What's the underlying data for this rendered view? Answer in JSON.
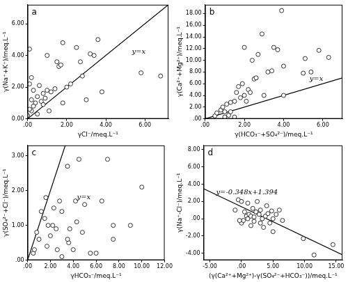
{
  "chart_data": [
    {
      "type": "scatter",
      "title": "a",
      "color": "#000000",
      "marker": "circle",
      "grid": false,
      "x_label": "γCl⁻/meq.L⁻¹",
      "y_label": "γ(Na⁺+K⁺)/meq.L⁻¹",
      "x": [
        0.1,
        0.2,
        0.1,
        0.3,
        0.2,
        0.4,
        0.3,
        0.2,
        0.5,
        0.5,
        0.6,
        0.7,
        0.8,
        0.8,
        0.9,
        1.0,
        1.0,
        1.1,
        1.2,
        1.4,
        1.5,
        1.6,
        1.7,
        1.8,
        1.8,
        2.0,
        2.2,
        2.5,
        2.7,
        2.8,
        3.0,
        3.2,
        3.4,
        3.6,
        3.8,
        5.8,
        6.8,
        0.0,
        0.1
      ],
      "values": [
        4.4,
        2.6,
        2.2,
        1.8,
        1.2,
        1.0,
        0.8,
        0.5,
        0.3,
        1.4,
        2.1,
        1.1,
        0.9,
        1.6,
        1.3,
        4.0,
        1.8,
        0.5,
        1.7,
        1.9,
        3.6,
        3.3,
        3.4,
        4.8,
        1.0,
        2.0,
        2.2,
        4.5,
        3.6,
        2.7,
        1.2,
        4.1,
        4.0,
        5.0,
        1.7,
        2.9,
        2.7,
        0.2,
        0.6
      ],
      "xlim": [
        0,
        7.2
      ],
      "ylim": [
        0,
        7.2
      ],
      "xticks": [
        {
          "value": 0,
          "label": ".00"
        },
        {
          "value": 2,
          "label": "2.00"
        },
        {
          "value": 4,
          "label": "4.00"
        },
        {
          "value": 6,
          "label": "6.00"
        }
      ],
      "yticks": [
        {
          "value": 0,
          "label": "0.00"
        },
        {
          "value": 2,
          "label": "2.00"
        },
        {
          "value": 4,
          "label": "4.00"
        },
        {
          "value": 6,
          "label": "6.00"
        }
      ],
      "annotation": {
        "text": "y=x",
        "slope": 1,
        "intercept": 0
      }
    },
    {
      "type": "scatter",
      "title": "b",
      "color": "#000000",
      "marker": "circle",
      "grid": false,
      "x_label": "γ(HCO₃⁻+SO₄²⁻)/meq.L⁻¹",
      "y_label": "γ(Ca²⁺+Mg²⁺)/meq.L⁻¹",
      "x": [
        0.5,
        0.6,
        0.8,
        0.9,
        1.0,
        1.1,
        1.2,
        1.3,
        1.5,
        1.5,
        1.6,
        1.7,
        1.8,
        1.9,
        2.0,
        2.0,
        2.1,
        2.2,
        2.3,
        2.4,
        2.5,
        2.6,
        2.7,
        2.9,
        3.0,
        3.2,
        3.4,
        3.5,
        3.7,
        3.9,
        4.0,
        4.0,
        5.0,
        5.1,
        5.4,
        5.8,
        6.3,
        1.0,
        1.3
      ],
      "values": [
        0.5,
        1.0,
        1.5,
        2.0,
        1.2,
        2.5,
        0.6,
        2.8,
        0.3,
        3.0,
        4.5,
        5.5,
        3.6,
        6.0,
        12.2,
        4.0,
        3.0,
        5.0,
        4.5,
        10.0,
        6.8,
        7.0,
        11.0,
        14.5,
        4.0,
        8.0,
        8.2,
        12.2,
        11.8,
        18.5,
        4.0,
        9.0,
        7.8,
        10.3,
        8.0,
        11.7,
        10.5,
        0.3,
        1.2
      ],
      "xlim": [
        0,
        7
      ],
      "ylim": [
        0,
        19.5
      ],
      "xticks": [
        {
          "value": 0,
          "label": ".00"
        },
        {
          "value": 2,
          "label": "2.00"
        },
        {
          "value": 4,
          "label": "4.00"
        },
        {
          "value": 6,
          "label": "6.00"
        }
      ],
      "yticks": [
        {
          "value": 0,
          "label": ".00"
        },
        {
          "value": 2,
          "label": "2.00"
        },
        {
          "value": 4,
          "label": "4.00"
        },
        {
          "value": 6,
          "label": "6.00"
        },
        {
          "value": 8,
          "label": "8.00"
        },
        {
          "value": 10,
          "label": "10.00"
        },
        {
          "value": 12,
          "label": "12.00"
        },
        {
          "value": 14,
          "label": "14.00"
        },
        {
          "value": 16,
          "label": "16.00"
        },
        {
          "value": 18,
          "label": "18.00"
        }
      ],
      "annotation": {
        "text": "y=x",
        "slope": 1,
        "intercept": 0
      }
    },
    {
      "type": "scatter",
      "title": "c",
      "color": "#000000",
      "marker": "circle",
      "grid": false,
      "x_label": "γHCO₃⁻/meq.L⁻¹",
      "y_label": "γ(SO₄²⁻+Cl⁻)/meq.L⁻¹",
      "x": [
        0.5,
        0.6,
        0.8,
        1.0,
        1.2,
        1.5,
        1.6,
        1.7,
        1.8,
        2.0,
        2.2,
        2.3,
        2.5,
        2.6,
        2.8,
        3.0,
        3.0,
        3.5,
        3.6,
        3.7,
        4.0,
        4.2,
        4.5,
        4.8,
        5.0,
        5.5,
        6.0,
        6.5,
        7.0,
        7.5,
        7.5,
        9.0,
        10.0,
        3.5,
        4.3
      ],
      "values": [
        0.2,
        0.3,
        0.8,
        0.6,
        1.4,
        1.2,
        1.8,
        0.4,
        1.0,
        0.7,
        1.0,
        1.5,
        0.9,
        0.3,
        1.7,
        0.1,
        1.4,
        2.7,
        0.5,
        0.9,
        0.3,
        1.7,
        2.9,
        0.8,
        1.6,
        0.2,
        0.2,
        1.7,
        2.9,
        1.0,
        0.6,
        1.0,
        2.1,
        0.6,
        1.1
      ],
      "xlim": [
        0,
        12
      ],
      "ylim": [
        0,
        3.3
      ],
      "xticks": [
        {
          "value": 0,
          "label": ".00"
        },
        {
          "value": 2,
          "label": "2.00"
        },
        {
          "value": 4,
          "label": "4.00"
        },
        {
          "value": 6,
          "label": "6.00"
        },
        {
          "value": 8,
          "label": "8.00"
        },
        {
          "value": 10,
          "label": "10.00"
        },
        {
          "value": 12,
          "label": "12.00"
        }
      ],
      "yticks": [
        {
          "value": 0,
          "label": ".00"
        },
        {
          "value": 1,
          "label": "1.00"
        },
        {
          "value": 2,
          "label": "2.00"
        },
        {
          "value": 3,
          "label": "3.00"
        }
      ],
      "annotation": {
        "text": "y=x",
        "slope": 1,
        "intercept": 0
      }
    },
    {
      "type": "scatter",
      "title": "d",
      "color": "#000000",
      "marker": "circle",
      "grid": false,
      "x_label": "(γ(Ca²⁺+Mg²⁺)-γ(SO₄²⁻+HCO₃⁻))/meq.L⁻¹",
      "y_label": "γ(Na⁺-Cl⁻)/meq.L⁻¹",
      "x": [
        -1,
        -0.5,
        0,
        0,
        0.3,
        0.5,
        0.8,
        1,
        1,
        1.2,
        1.5,
        1.5,
        1.8,
        2,
        2,
        2.3,
        2.5,
        2.8,
        3,
        3,
        3.3,
        3.5,
        3.8,
        4,
        4.2,
        4.5,
        4.8,
        5,
        5,
        5.5,
        6,
        6.5,
        9.8,
        11.5,
        14.5,
        -0.3
      ],
      "values": [
        1.0,
        2.2,
        2.0,
        -0.5,
        -0.2,
        0.8,
        0.3,
        1.8,
        0.0,
        0.5,
        0.3,
        -0.8,
        1.2,
        0.2,
        -0.3,
        0.8,
        2.0,
        0.5,
        -0.5,
        1.0,
        0.0,
        -1.0,
        0.3,
        1.5,
        0.6,
        -0.5,
        0.9,
        0.0,
        -1.5,
        0.5,
        1.0,
        -0.2,
        -2.3,
        -4.2,
        -3.0,
        -0.2
      ],
      "xlim": [
        -6,
        16
      ],
      "ylim": [
        -4.8,
        8.5
      ],
      "xticks": [
        {
          "value": -5,
          "label": "-5.00"
        },
        {
          "value": 0,
          "label": ".00"
        },
        {
          "value": 5,
          "label": "5.00"
        },
        {
          "value": 10,
          "label": "10.00"
        },
        {
          "value": 15,
          "label": "15.00"
        }
      ],
      "yticks": [
        {
          "value": -4,
          "label": "-4.00"
        },
        {
          "value": -2,
          "label": "-2.00"
        },
        {
          "value": 0,
          "label": ".00"
        },
        {
          "value": 2,
          "label": "2.00"
        },
        {
          "value": 4,
          "label": "4.00"
        },
        {
          "value": 6,
          "label": "6.00"
        },
        {
          "value": 8,
          "label": "8.00"
        }
      ],
      "annotation": {
        "text": "y=-0.348x+1.394",
        "slope": -0.348,
        "intercept": 1.394
      }
    }
  ]
}
